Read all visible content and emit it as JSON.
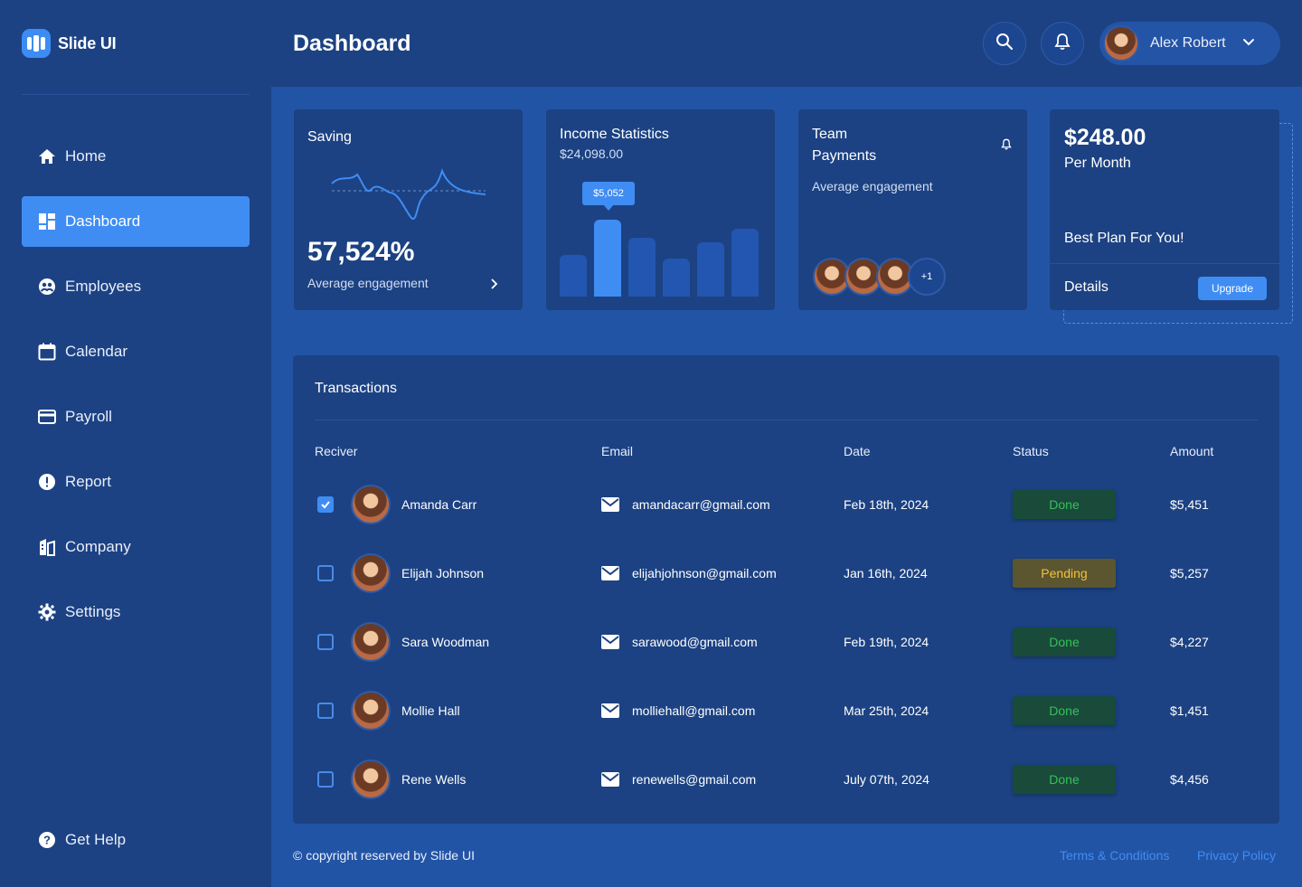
{
  "brand": {
    "name": "Slide UI"
  },
  "sidebar": {
    "items": [
      {
        "label": "Home",
        "icon": "home-icon"
      },
      {
        "label": "Dashboard",
        "icon": "dashboard-icon",
        "active": true
      },
      {
        "label": "Employees",
        "icon": "employees-icon"
      },
      {
        "label": "Calendar",
        "icon": "calendar-icon"
      },
      {
        "label": "Payroll",
        "icon": "payroll-icon"
      },
      {
        "label": "Report",
        "icon": "report-icon"
      },
      {
        "label": "Company",
        "icon": "company-icon"
      },
      {
        "label": "Settings",
        "icon": "settings-icon"
      }
    ],
    "help": {
      "label": "Get Help",
      "icon": "help-icon"
    }
  },
  "header": {
    "title": "Dashboard",
    "user": {
      "name": "Alex Robert"
    }
  },
  "cards": {
    "saving": {
      "title": "Saving",
      "value": "57,524%",
      "subtitle": "Average engagement"
    },
    "income": {
      "title": "Income Statistics",
      "amount": "$24,098.00",
      "tooltip": "$5,052",
      "bars": [
        0.35,
        0.65,
        0.5,
        0.32,
        0.46,
        0.58
      ],
      "highlight_index": 1
    },
    "team": {
      "title_line1": "Team",
      "title_line2": "Payments",
      "subtitle": "Average engagement",
      "more": "+1"
    },
    "plan": {
      "price": "$248.00",
      "period": "Per Month",
      "tagline": "Best Plan For You!",
      "details": "Details",
      "upgrade": "Upgrade"
    }
  },
  "transactions": {
    "title": "Transactions",
    "columns": [
      "Reciver",
      "Email",
      "Date",
      "Status",
      "Amount"
    ],
    "rows": [
      {
        "name": "Amanda Carr",
        "email": "amandacarr@gmail.com",
        "date": "Feb 18th, 2024",
        "status": "Done",
        "amount": "$5,451",
        "checked": true
      },
      {
        "name": "Elijah Johnson",
        "email": "elijahjohnson@gmail.com",
        "date": "Jan 16th, 2024",
        "status": "Pending",
        "amount": "$5,257",
        "checked": false
      },
      {
        "name": "Sara Woodman",
        "email": "sarawood@gmail.com",
        "date": "Feb 19th, 2024",
        "status": "Done",
        "amount": "$4,227",
        "checked": false
      },
      {
        "name": "Mollie Hall",
        "email": "molliehall@gmail.com",
        "date": "Mar 25th, 2024",
        "status": "Done",
        "amount": "$1,451",
        "checked": false
      },
      {
        "name": "Rene Wells",
        "email": "renewells@gmail.com",
        "date": "July 07th, 2024",
        "status": "Done",
        "amount": "$4,456",
        "checked": false
      }
    ]
  },
  "footer": {
    "copyright": "© copyright reserved by Slide UI",
    "terms": "Terms & Conditions",
    "privacy": "Privacy Policy"
  },
  "colors": {
    "background": "#2254a6",
    "panel": "#1c4283",
    "accent": "#3f8df3",
    "done": "#33c15a",
    "pending": "#f5c23a"
  }
}
